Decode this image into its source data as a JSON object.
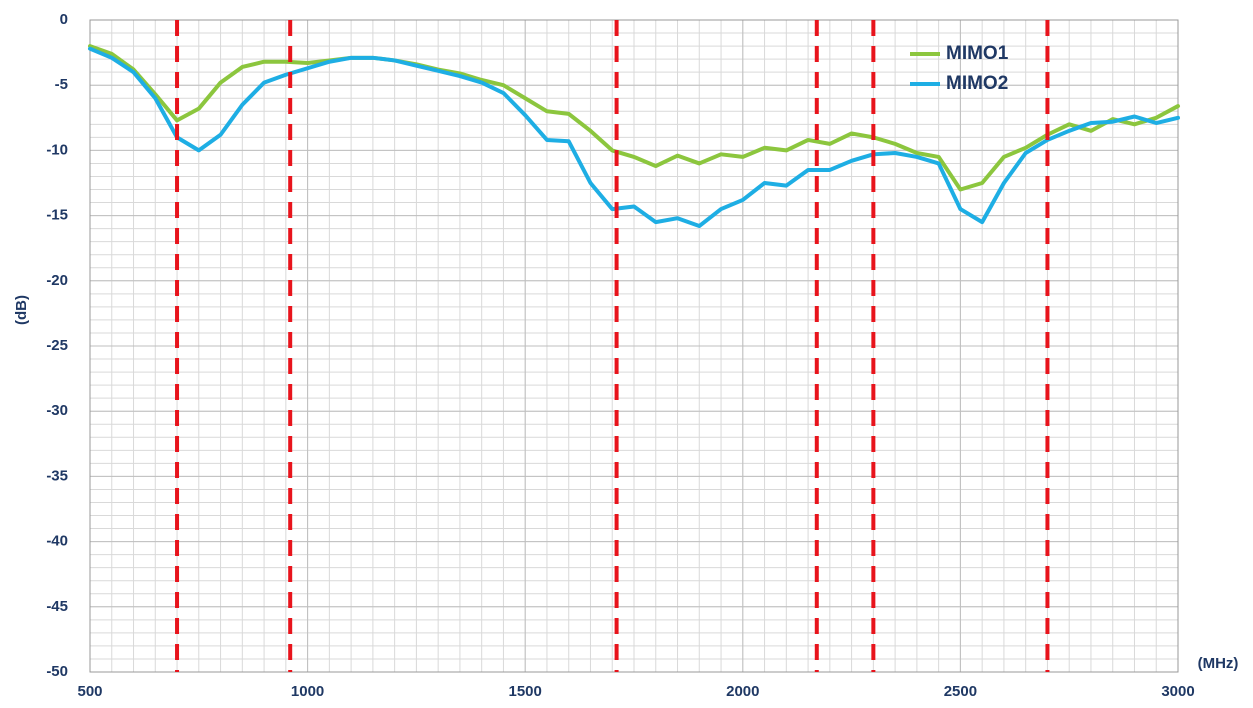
{
  "chart_data": {
    "type": "line",
    "xlabel": "(MHz)",
    "ylabel": "(dB)",
    "x": [
      500,
      550,
      600,
      650,
      700,
      750,
      800,
      850,
      900,
      950,
      1000,
      1050,
      1100,
      1150,
      1200,
      1250,
      1300,
      1350,
      1400,
      1450,
      1500,
      1550,
      1600,
      1650,
      1700,
      1750,
      1800,
      1850,
      1900,
      1950,
      2000,
      2050,
      2100,
      2150,
      2200,
      2250,
      2300,
      2350,
      2400,
      2450,
      2500,
      2550,
      2600,
      2650,
      2700,
      2750,
      2800,
      2850,
      2900,
      2950,
      3000
    ],
    "series": [
      {
        "name": "MIMO1",
        "color": "#8cc63e",
        "values": [
          -2.0,
          -2.6,
          -3.8,
          -5.7,
          -7.7,
          -6.8,
          -4.8,
          -3.6,
          -3.2,
          -3.2,
          -3.3,
          -3.1,
          -2.9,
          -2.9,
          -3.1,
          -3.4,
          -3.8,
          -4.1,
          -4.6,
          -5.0,
          -6.0,
          -7.0,
          -7.2,
          -8.5,
          -10.0,
          -10.5,
          -11.2,
          -10.4,
          -11.0,
          -10.3,
          -10.5,
          -9.8,
          -10.0,
          -9.2,
          -9.5,
          -8.7,
          -9.0,
          -9.5,
          -10.2,
          -10.5,
          -13.0,
          -12.5,
          -10.5,
          -9.8,
          -8.8,
          -8.0,
          -8.5,
          -7.6,
          -8.0,
          -7.5,
          -6.6
        ]
      },
      {
        "name": "MIMO2",
        "color": "#1eaee4",
        "values": [
          -2.2,
          -2.9,
          -4.0,
          -6.0,
          -9.0,
          -10.0,
          -8.8,
          -6.5,
          -4.8,
          -4.2,
          -3.7,
          -3.2,
          -2.9,
          -2.9,
          -3.1,
          -3.5,
          -3.9,
          -4.3,
          -4.8,
          -5.6,
          -7.3,
          -9.2,
          -9.3,
          -12.5,
          -14.5,
          -14.3,
          -15.5,
          -15.2,
          -15.8,
          -14.5,
          -13.8,
          -12.5,
          -12.7,
          -11.5,
          -11.5,
          -10.8,
          -10.3,
          -10.2,
          -10.5,
          -11.0,
          -14.5,
          -15.5,
          -12.5,
          -10.2,
          -9.2,
          -8.5,
          -7.9,
          -7.8,
          -7.4,
          -7.9,
          -7.5
        ]
      }
    ],
    "xlim": [
      500,
      3000
    ],
    "xticks": [
      500,
      1000,
      1500,
      2000,
      2500,
      3000
    ],
    "ylim": [
      -50,
      0
    ],
    "yticks": [
      0,
      -5,
      -10,
      -15,
      -20,
      -25,
      -30,
      -35,
      -40,
      -45,
      -50
    ],
    "grid": true,
    "reference_lines": {
      "x": [
        700,
        960,
        1710,
        2170,
        2300,
        2700
      ],
      "color": "#e8141c"
    },
    "legend": "upper right"
  }
}
